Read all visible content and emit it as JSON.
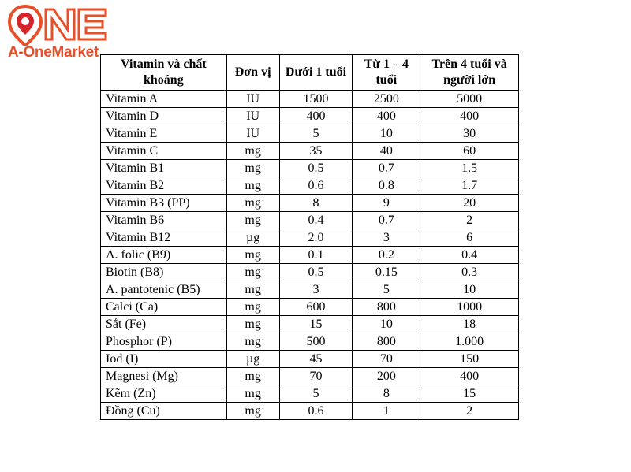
{
  "logo": {
    "part1": "A-One",
    "part2": "Market",
    "mark_letters": "ONE",
    "colors": {
      "orange": "#e8502a",
      "red": "#d6262c"
    }
  },
  "table": {
    "headers": [
      "Vitamin và chất khoáng",
      "Đơn vị",
      "Dưới 1 tuổi",
      "Từ 1 – 4 tuổi",
      "Trên 4 tuổi và người lớn"
    ],
    "rows": [
      [
        "Vitamin A",
        "IU",
        "1500",
        "2500",
        "5000"
      ],
      [
        "Vitamin D",
        "IU",
        "400",
        "400",
        "400"
      ],
      [
        "Vitamin E",
        "IU",
        "5",
        "10",
        "30"
      ],
      [
        "Vitamin C",
        "mg",
        "35",
        "40",
        "60"
      ],
      [
        "Vitamin B1",
        "mg",
        "0.5",
        "0.7",
        "1.5"
      ],
      [
        "Vitamin B2",
        "mg",
        "0.6",
        "0.8",
        "1.7"
      ],
      [
        "Vitamin B3 (PP)",
        "mg",
        "8",
        "9",
        "20"
      ],
      [
        "Vitamin B6",
        "mg",
        "0.4",
        "0.7",
        "2"
      ],
      [
        "Vitamin B12",
        "µg",
        "2.0",
        "3",
        "6"
      ],
      [
        "A. folic (B9)",
        "mg",
        "0.1",
        "0.2",
        "0.4"
      ],
      [
        "Biotin (B8)",
        "mg",
        "0.5",
        "0.15",
        "0.3"
      ],
      [
        "A. pantotenic (B5)",
        "mg",
        "3",
        "5",
        "10"
      ],
      [
        "Calci (Ca)",
        "mg",
        "600",
        "800",
        "1000"
      ],
      [
        "Sắt (Fe)",
        "mg",
        "15",
        "10",
        "18"
      ],
      [
        "Phosphor (P)",
        "mg",
        "500",
        "800",
        "1.000"
      ],
      [
        "Iod (I)",
        "µg",
        "45",
        "70",
        "150"
      ],
      [
        "Magnesi (Mg)",
        "mg",
        "70",
        "200",
        "400"
      ],
      [
        "Kẽm (Zn)",
        "mg",
        "5",
        "8",
        "15"
      ],
      [
        "Đồng (Cu)",
        "mg",
        "0.6",
        "1",
        "2"
      ]
    ]
  }
}
